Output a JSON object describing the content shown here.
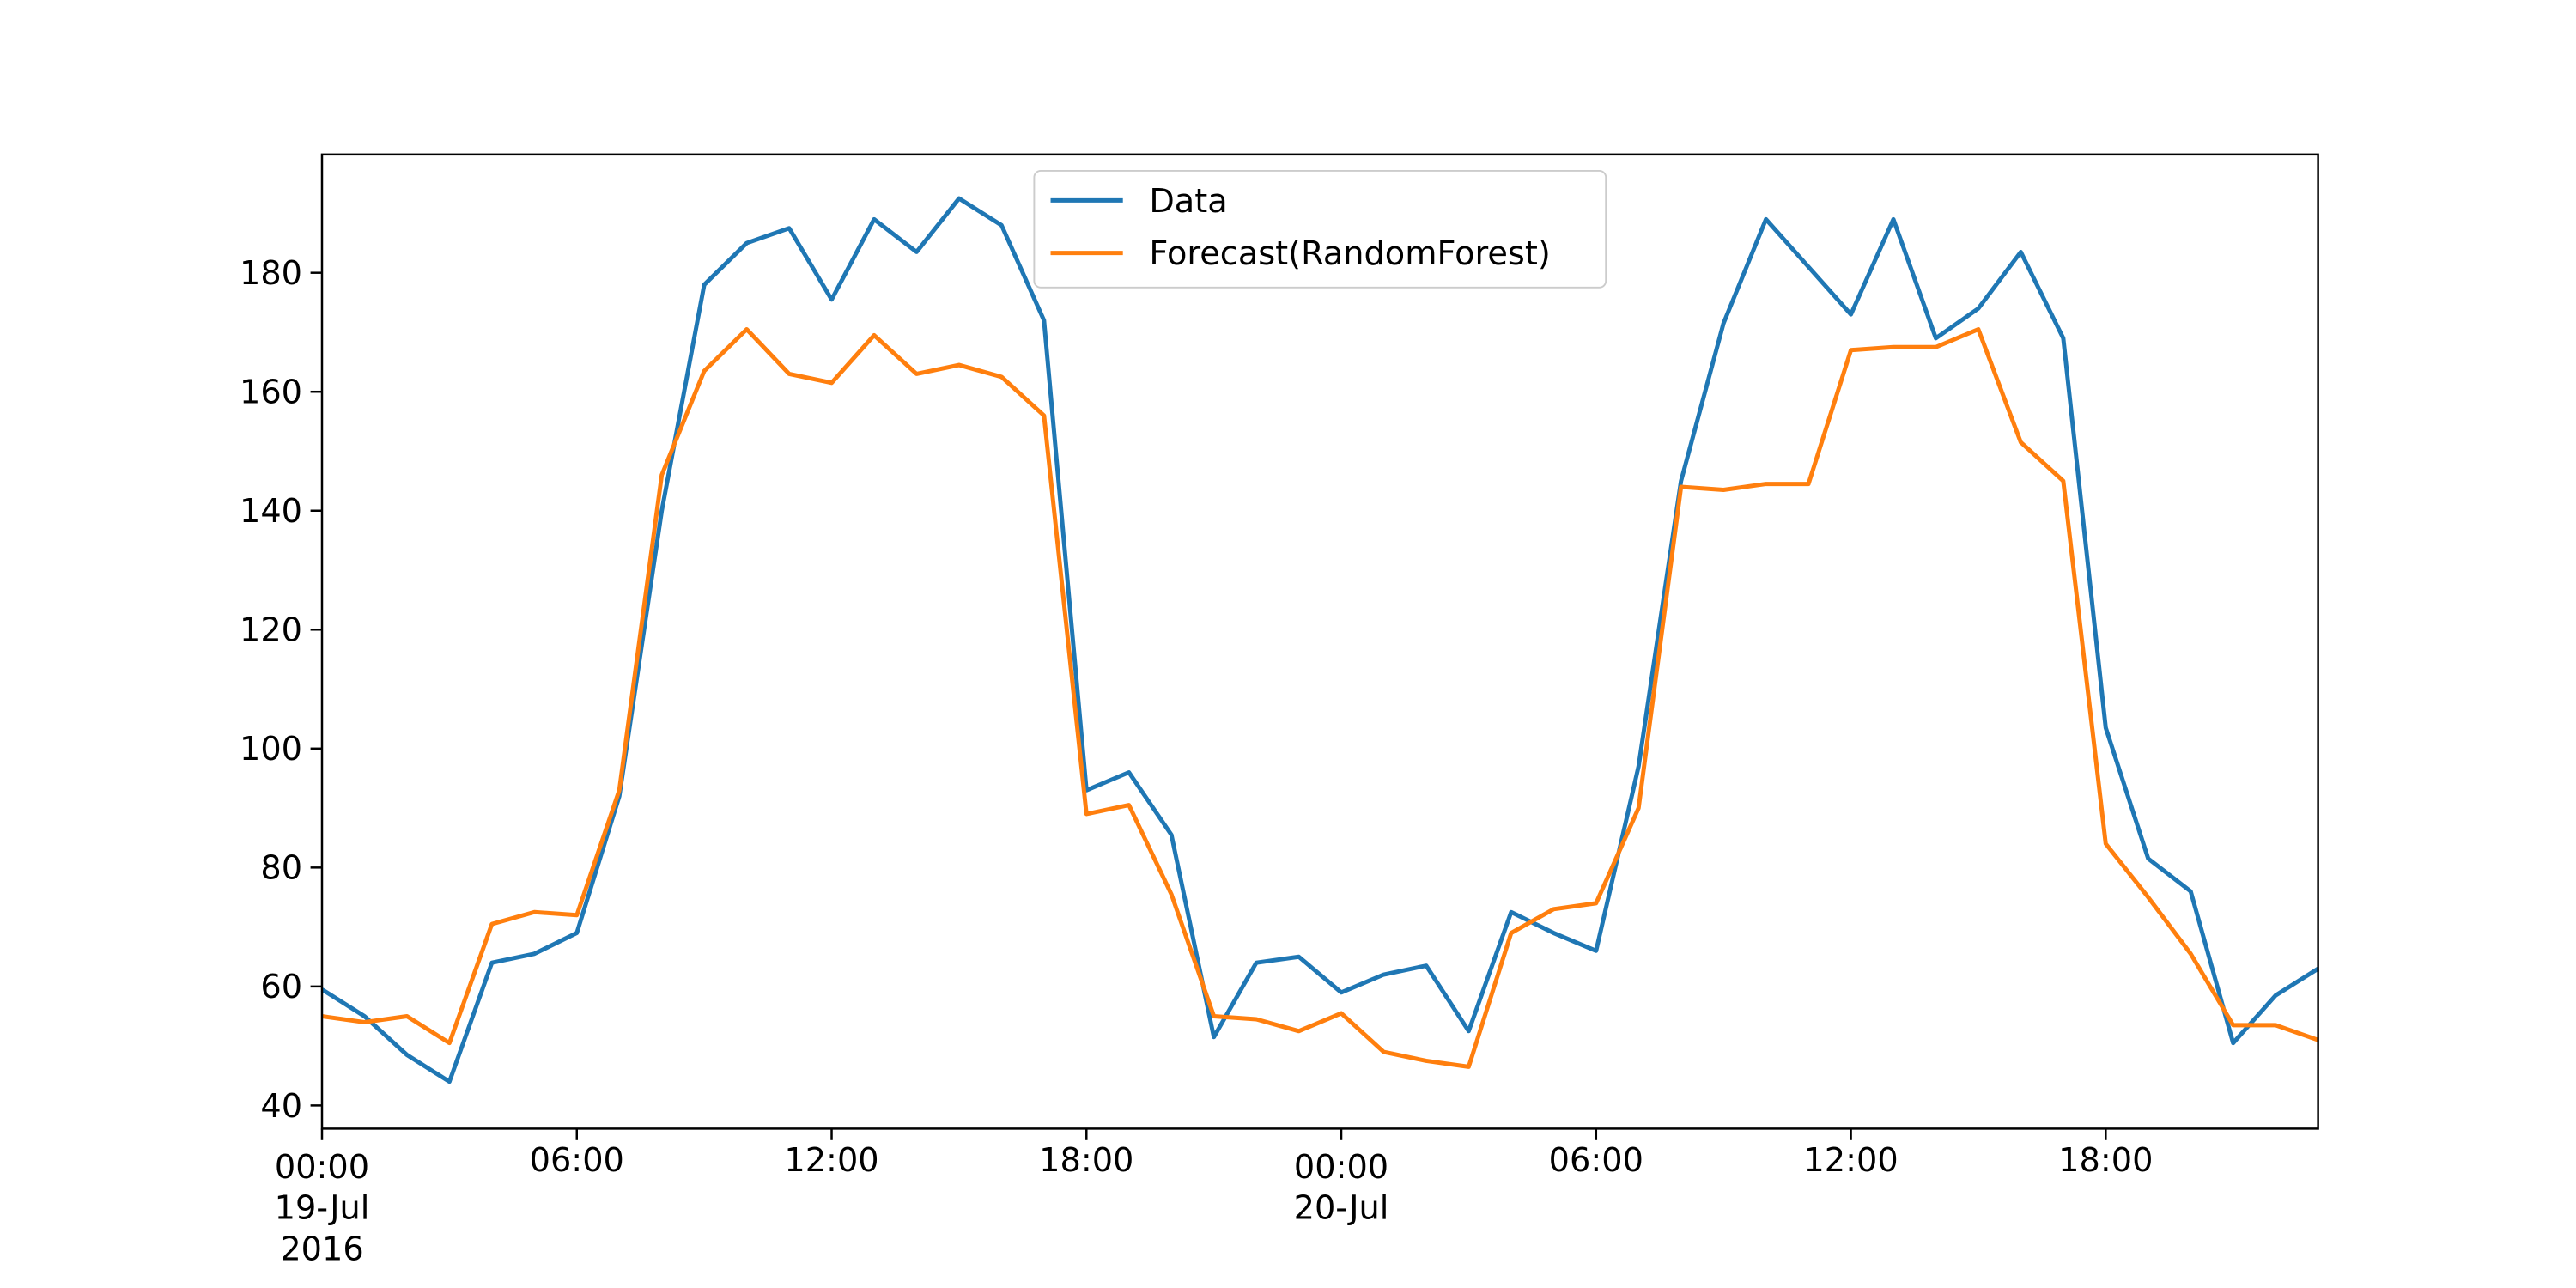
{
  "chart_data": {
    "type": "line",
    "x": [
      "2016-07-19T00:00",
      "2016-07-19T01:00",
      "2016-07-19T02:00",
      "2016-07-19T03:00",
      "2016-07-19T04:00",
      "2016-07-19T05:00",
      "2016-07-19T06:00",
      "2016-07-19T07:00",
      "2016-07-19T08:00",
      "2016-07-19T09:00",
      "2016-07-19T10:00",
      "2016-07-19T11:00",
      "2016-07-19T12:00",
      "2016-07-19T13:00",
      "2016-07-19T14:00",
      "2016-07-19T15:00",
      "2016-07-19T16:00",
      "2016-07-19T17:00",
      "2016-07-19T18:00",
      "2016-07-19T19:00",
      "2016-07-19T20:00",
      "2016-07-19T21:00",
      "2016-07-19T22:00",
      "2016-07-19T23:00",
      "2016-07-20T00:00",
      "2016-07-20T01:00",
      "2016-07-20T02:00",
      "2016-07-20T03:00",
      "2016-07-20T04:00",
      "2016-07-20T05:00",
      "2016-07-20T06:00",
      "2016-07-20T07:00",
      "2016-07-20T08:00",
      "2016-07-20T09:00",
      "2016-07-20T10:00",
      "2016-07-20T11:00",
      "2016-07-20T12:00",
      "2016-07-20T13:00",
      "2016-07-20T14:00",
      "2016-07-20T15:00",
      "2016-07-20T16:00",
      "2016-07-20T17:00",
      "2016-07-20T18:00",
      "2016-07-20T19:00",
      "2016-07-20T20:00",
      "2016-07-20T21:00",
      "2016-07-20T22:00",
      "2016-07-20T23:00"
    ],
    "series": [
      {
        "name": "Data",
        "color": "#1f77b4",
        "values": [
          59.5,
          55,
          48.5,
          44,
          64,
          65.5,
          69,
          92,
          140,
          178,
          185,
          187.5,
          175.5,
          189,
          183.5,
          192.5,
          188,
          172,
          93,
          96,
          85.5,
          51.5,
          64,
          65,
          59,
          62,
          63.5,
          52.5,
          72.5,
          69,
          66,
          97,
          145,
          171.5,
          189,
          181,
          173,
          189,
          169,
          174,
          183.5,
          169,
          103.5,
          81.5,
          76,
          50.5,
          58.5,
          63
        ]
      },
      {
        "name": "Forecast(RandomForest)",
        "color": "#ff7f0e",
        "values": [
          55,
          54,
          55,
          50.5,
          70.5,
          72.5,
          72,
          93,
          146,
          163.5,
          170.5,
          163,
          161.5,
          169.5,
          163,
          164.5,
          162.5,
          156,
          89,
          90.5,
          75.5,
          55,
          54.5,
          52.5,
          55.5,
          49,
          47.5,
          46.5,
          69,
          73,
          74,
          90,
          144,
          143.5,
          144.5,
          144.5,
          167,
          167.5,
          167.5,
          170.5,
          151.5,
          145,
          84,
          75,
          65.5,
          53.5,
          53.5,
          51
        ]
      }
    ],
    "xlim": [
      "2016-07-19T00:00",
      "2016-07-20T23:00"
    ],
    "xticks": [
      {
        "value": "2016-07-19T00:00",
        "label": [
          "00:00",
          "19-Jul",
          "2016"
        ]
      },
      {
        "value": "2016-07-19T06:00",
        "label": [
          "06:00"
        ]
      },
      {
        "value": "2016-07-19T12:00",
        "label": [
          "12:00"
        ]
      },
      {
        "value": "2016-07-19T18:00",
        "label": [
          "18:00"
        ]
      },
      {
        "value": "2016-07-20T00:00",
        "label": [
          "00:00",
          "20-Jul"
        ]
      },
      {
        "value": "2016-07-20T06:00",
        "label": [
          "06:00"
        ]
      },
      {
        "value": "2016-07-20T12:00",
        "label": [
          "12:00"
        ]
      },
      {
        "value": "2016-07-20T18:00",
        "label": [
          "18:00"
        ]
      }
    ],
    "ylim": [
      36.1,
      199.9
    ],
    "yticks": [
      40,
      60,
      80,
      100,
      120,
      140,
      160,
      180
    ],
    "grid": false,
    "legend": "upper center"
  }
}
